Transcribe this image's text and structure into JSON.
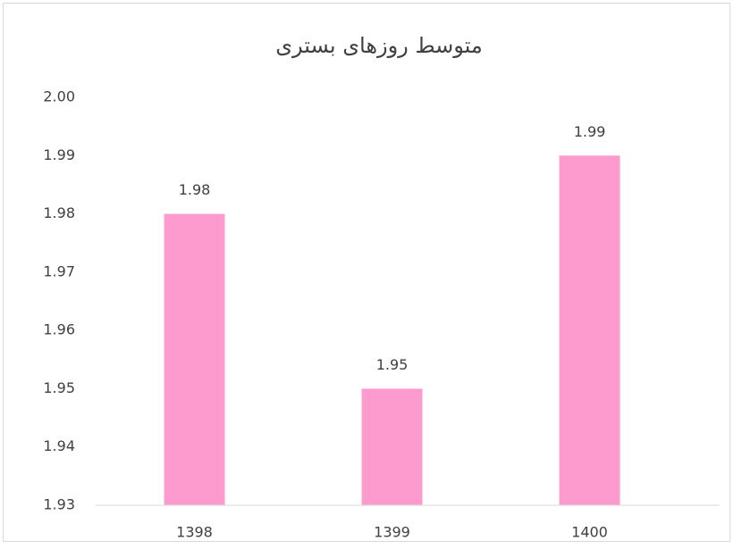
{
  "chart_data": {
    "type": "bar",
    "title": "متوسط روزهای بستری",
    "categories": [
      "1398",
      "1399",
      "1400"
    ],
    "values": [
      1.98,
      1.95,
      1.99
    ],
    "color": "#fd9bce",
    "ylim": [
      1.93,
      2
    ],
    "yticks": [
      1.93,
      1.94,
      1.95,
      1.96,
      1.97,
      1.98,
      1.99,
      {
        "value": 2,
        "label": "2.00"
      }
    ],
    "grid": false
  }
}
